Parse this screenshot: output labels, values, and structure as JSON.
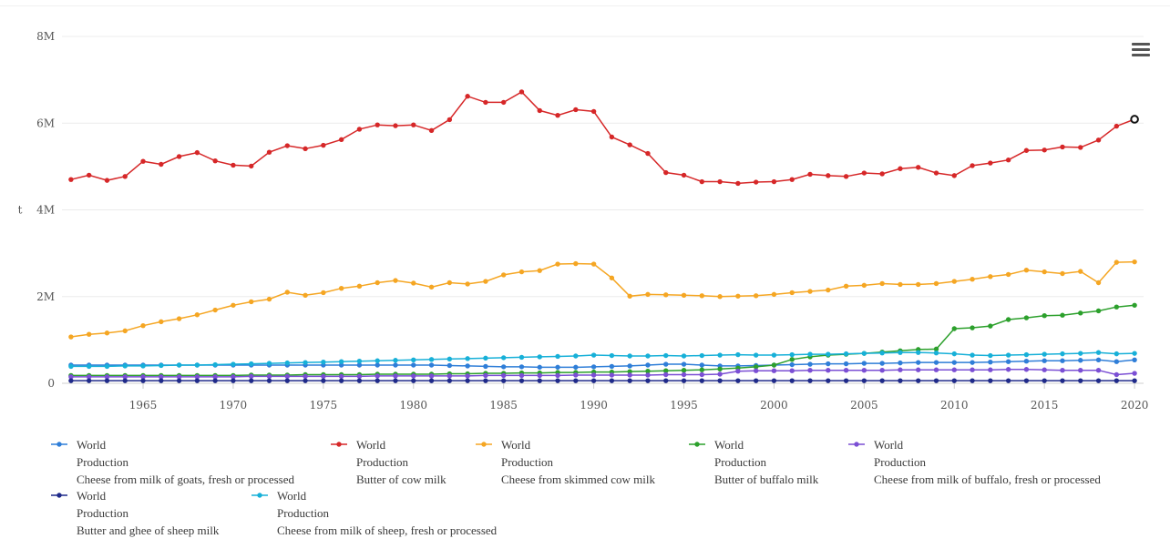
{
  "chart_data": {
    "type": "line",
    "title": "",
    "ylabel": "t",
    "x": [
      1961,
      1962,
      1963,
      1964,
      1965,
      1966,
      1967,
      1968,
      1969,
      1970,
      1971,
      1972,
      1973,
      1974,
      1975,
      1976,
      1977,
      1978,
      1979,
      1980,
      1981,
      1982,
      1983,
      1984,
      1985,
      1986,
      1987,
      1988,
      1989,
      1990,
      1991,
      1992,
      1993,
      1994,
      1995,
      1996,
      1997,
      1998,
      1999,
      2000,
      2001,
      2002,
      2003,
      2004,
      2005,
      2006,
      2007,
      2008,
      2009,
      2010,
      2011,
      2012,
      2013,
      2014,
      2015,
      2016,
      2017,
      2018,
      2019,
      2020
    ],
    "xlim": [
      1960.5,
      2020.5
    ],
    "ylim": [
      0,
      8000000
    ],
    "x_ticks": [
      "1965",
      "1970",
      "1975",
      "1980",
      "1985",
      "1990",
      "1995",
      "2000",
      "2005",
      "2010",
      "2015",
      "2020"
    ],
    "y_ticks": [
      "0",
      "2M",
      "4M",
      "6M",
      "8M"
    ],
    "grid": "horizontal",
    "legend_position": "bottom",
    "highlight_last_point": "Butter of cow milk",
    "series": [
      {
        "id": "s1",
        "legend": [
          "World",
          "Production",
          "Cheese from milk of goats, fresh or processed"
        ],
        "color": "#2f7ed8",
        "values": [
          420000,
          420000,
          420000,
          420000,
          420000,
          420000,
          420000,
          420000,
          420000,
          420000,
          420000,
          420000,
          420000,
          420000,
          420000,
          420000,
          420000,
          420000,
          420000,
          420000,
          420000,
          410000,
          400000,
          390000,
          380000,
          380000,
          370000,
          370000,
          370000,
          380000,
          390000,
          400000,
          420000,
          440000,
          440000,
          420000,
          400000,
          400000,
          410000,
          420000,
          430000,
          440000,
          450000,
          450000,
          460000,
          460000,
          470000,
          480000,
          480000,
          480000,
          480000,
          490000,
          500000,
          510000,
          520000,
          520000,
          530000,
          540000,
          500000,
          540000
        ]
      },
      {
        "id": "s2",
        "legend": [
          "World",
          "Production",
          "Butter of cow milk"
        ],
        "color": "#d62728",
        "values": [
          4700000,
          4800000,
          4680000,
          4770000,
          5120000,
          5050000,
          5230000,
          5320000,
          5130000,
          5030000,
          5010000,
          5330000,
          5480000,
          5410000,
          5490000,
          5620000,
          5860000,
          5960000,
          5940000,
          5960000,
          5830000,
          6080000,
          6620000,
          6480000,
          6480000,
          6720000,
          6290000,
          6180000,
          6310000,
          6270000,
          5680000,
          5500000,
          5300000,
          4860000,
          4800000,
          4650000,
          4650000,
          4610000,
          4640000,
          4650000,
          4700000,
          4820000,
          4790000,
          4770000,
          4850000,
          4830000,
          4950000,
          4980000,
          4850000,
          4790000,
          5020000,
          5080000,
          5150000,
          5370000,
          5380000,
          5450000,
          5440000,
          5610000,
          5930000,
          6090000
        ]
      },
      {
        "id": "s3",
        "legend": [
          "World",
          "Production",
          "Cheese from skimmed cow milk"
        ],
        "color": "#f5a623",
        "values": [
          1070000,
          1130000,
          1160000,
          1210000,
          1330000,
          1420000,
          1490000,
          1580000,
          1690000,
          1800000,
          1880000,
          1940000,
          2100000,
          2030000,
          2090000,
          2190000,
          2240000,
          2320000,
          2370000,
          2310000,
          2220000,
          2320000,
          2290000,
          2350000,
          2500000,
          2570000,
          2600000,
          2750000,
          2760000,
          2750000,
          2430000,
          2010000,
          2050000,
          2040000,
          2030000,
          2020000,
          2000000,
          2010000,
          2020000,
          2050000,
          2090000,
          2120000,
          2150000,
          2240000,
          2260000,
          2300000,
          2280000,
          2280000,
          2300000,
          2350000,
          2400000,
          2460000,
          2510000,
          2610000,
          2570000,
          2530000,
          2580000,
          2320000,
          2790000,
          2800000
        ]
      },
      {
        "id": "s4",
        "legend": [
          "World",
          "Production",
          "Butter of buffalo milk"
        ],
        "color": "#2ca02c",
        "values": [
          180000,
          180000,
          180000,
          180000,
          180000,
          180000,
          180000,
          180000,
          180000,
          180000,
          190000,
          190000,
          190000,
          200000,
          200000,
          200000,
          200000,
          210000,
          210000,
          210000,
          210000,
          220000,
          220000,
          230000,
          230000,
          240000,
          240000,
          250000,
          250000,
          260000,
          260000,
          270000,
          280000,
          290000,
          300000,
          310000,
          330000,
          350000,
          380000,
          420000,
          550000,
          610000,
          650000,
          670000,
          690000,
          720000,
          750000,
          780000,
          790000,
          1260000,
          1280000,
          1320000,
          1470000,
          1510000,
          1560000,
          1570000,
          1620000,
          1670000,
          1760000,
          1800000
        ]
      },
      {
        "id": "s5",
        "legend": [
          "World",
          "Production",
          "Cheese from milk of buffalo, fresh or processed"
        ],
        "color": "#7b4fd4",
        "values": [
          150000,
          150000,
          150000,
          150000,
          150000,
          150000,
          150000,
          150000,
          150000,
          150000,
          160000,
          160000,
          160000,
          160000,
          160000,
          160000,
          160000,
          170000,
          170000,
          170000,
          170000,
          170000,
          170000,
          180000,
          180000,
          180000,
          180000,
          180000,
          190000,
          190000,
          190000,
          190000,
          190000,
          200000,
          200000,
          200000,
          210000,
          280000,
          290000,
          290000,
          290000,
          300000,
          300000,
          300000,
          300000,
          300000,
          310000,
          310000,
          310000,
          310000,
          310000,
          310000,
          320000,
          320000,
          310000,
          300000,
          300000,
          300000,
          200000,
          230000
        ]
      },
      {
        "id": "s6",
        "legend": [
          "World",
          "Production",
          "Butter and ghee of sheep milk"
        ],
        "color": "#1f2a8a",
        "values": [
          60000,
          60000,
          60000,
          60000,
          60000,
          60000,
          60000,
          60000,
          60000,
          60000,
          60000,
          60000,
          60000,
          60000,
          60000,
          60000,
          60000,
          60000,
          60000,
          60000,
          60000,
          60000,
          60000,
          60000,
          60000,
          60000,
          60000,
          60000,
          60000,
          60000,
          60000,
          60000,
          60000,
          60000,
          60000,
          60000,
          60000,
          60000,
          60000,
          60000,
          60000,
          60000,
          60000,
          60000,
          60000,
          60000,
          60000,
          60000,
          60000,
          60000,
          60000,
          60000,
          60000,
          60000,
          60000,
          60000,
          60000,
          60000,
          60000,
          60000
        ]
      },
      {
        "id": "s7",
        "legend": [
          "World",
          "Production",
          "Cheese from milk of sheep, fresh or processed"
        ],
        "color": "#17b0d8",
        "values": [
          390000,
          390000,
          390000,
          400000,
          400000,
          410000,
          420000,
          420000,
          430000,
          440000,
          450000,
          460000,
          470000,
          480000,
          490000,
          500000,
          510000,
          520000,
          530000,
          540000,
          550000,
          560000,
          570000,
          580000,
          590000,
          600000,
          610000,
          620000,
          630000,
          650000,
          640000,
          630000,
          630000,
          640000,
          630000,
          640000,
          650000,
          660000,
          650000,
          650000,
          660000,
          670000,
          670000,
          680000,
          690000,
          700000,
          710000,
          710000,
          700000,
          680000,
          650000,
          640000,
          650000,
          660000,
          670000,
          680000,
          690000,
          710000,
          680000,
          690000
        ]
      }
    ]
  }
}
